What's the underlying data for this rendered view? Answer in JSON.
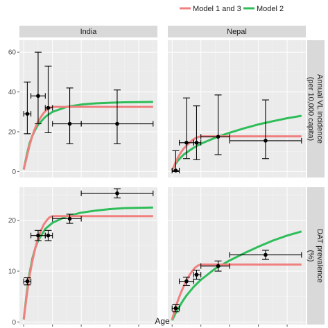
{
  "chart_data": {
    "type": "line",
    "xlabel": "Age",
    "xlim": [
      -3,
      93
    ],
    "xticks": [
      0,
      20,
      40,
      60,
      80
    ],
    "legend_position": "top",
    "grid": true,
    "columns": [
      "India",
      "Nepal"
    ],
    "rows": [
      {
        "label": "Annual VL incidence\n(per 10,000 capita)",
        "ylim": [
          -3,
          66
        ],
        "yticks": [
          0,
          20,
          40,
          60
        ]
      },
      {
        "label": "DAT prevalence\n(%)",
        "ylim": [
          -0.5,
          26.5
        ],
        "yticks": [
          0,
          10,
          20
        ]
      }
    ],
    "series": [
      {
        "name": "Model 1 and 3",
        "color": "#f08080"
      },
      {
        "name": "Model 2",
        "color": "#2ebd59"
      }
    ],
    "panels": [
      {
        "column": "India",
        "row": 0,
        "observed": [
          {
            "x": 2.5,
            "y": 29,
            "ylow": 19,
            "yhigh": 45,
            "xlow": 0,
            "xhigh": 5
          },
          {
            "x": 10,
            "y": 38,
            "ylow": 24,
            "yhigh": 60,
            "xlow": 5,
            "xhigh": 15
          },
          {
            "x": 17,
            "y": 32,
            "ylow": 19.5,
            "yhigh": 53,
            "xlow": 15,
            "xhigh": 20
          },
          {
            "x": 32,
            "y": 24,
            "ylow": 14,
            "yhigh": 42,
            "xlow": 20,
            "xhigh": 40
          },
          {
            "x": 65,
            "y": 24,
            "ylow": 14,
            "yhigh": 41,
            "xlow": 40,
            "xhigh": 90
          }
        ],
        "curves": {
          "Model 1 and 3": [
            [
              0,
              1
            ],
            [
              2,
              7
            ],
            [
              4,
              13
            ],
            [
              6,
              18
            ],
            [
              8,
              22
            ],
            [
              10,
              25
            ],
            [
              12,
              27.5
            ],
            [
              14,
              29.5
            ],
            [
              16,
              31
            ],
            [
              18,
              32
            ],
            [
              20,
              32.5
            ],
            [
              25,
              32.5
            ],
            [
              90,
              32.5
            ]
          ],
          "Model 2": [
            [
              0,
              1
            ],
            [
              2,
              8
            ],
            [
              4,
              14
            ],
            [
              6,
              18
            ],
            [
              8,
              21
            ],
            [
              10,
              23.5
            ],
            [
              15,
              27.5
            ],
            [
              20,
              30
            ],
            [
              30,
              32.5
            ],
            [
              40,
              33.7
            ],
            [
              50,
              34.3
            ],
            [
              60,
              34.6
            ],
            [
              70,
              34.8
            ],
            [
              90,
              35
            ]
          ]
        }
      },
      {
        "column": "Nepal",
        "row": 0,
        "observed": [
          {
            "x": 2.5,
            "y": 0.5,
            "ylow": 0,
            "yhigh": 10.5,
            "xlow": 0,
            "xhigh": 5
          },
          {
            "x": 10,
            "y": 14.5,
            "ylow": 6.5,
            "yhigh": 37,
            "xlow": 5,
            "xhigh": 15
          },
          {
            "x": 17,
            "y": 14.5,
            "ylow": 6,
            "yhigh": 33,
            "xlow": 15,
            "xhigh": 20
          },
          {
            "x": 32,
            "y": 17.5,
            "ylow": 8.5,
            "yhigh": 38.5,
            "xlow": 20,
            "xhigh": 40
          },
          {
            "x": 65,
            "y": 15.5,
            "ylow": 6.5,
            "yhigh": 36,
            "xlow": 40,
            "xhigh": 90
          }
        ],
        "curves": {
          "Model 1 and 3": [
            [
              0,
              0.5
            ],
            [
              2,
              4
            ],
            [
              4,
              7
            ],
            [
              6,
              9.5
            ],
            [
              8,
              11.5
            ],
            [
              10,
              13
            ],
            [
              12,
              14.5
            ],
            [
              14,
              15.7
            ],
            [
              16,
              16.7
            ],
            [
              18,
              17.3
            ],
            [
              20,
              17.7
            ],
            [
              90,
              17.7
            ]
          ],
          "Model 2": [
            [
              0,
              0.5
            ],
            [
              2,
              3.5
            ],
            [
              4,
              5.5
            ],
            [
              6,
              7
            ],
            [
              8,
              8.5
            ],
            [
              10,
              9.5
            ],
            [
              15,
              12
            ],
            [
              20,
              14
            ],
            [
              30,
              17
            ],
            [
              40,
              19.5
            ],
            [
              50,
              21.7
            ],
            [
              60,
              23.7
            ],
            [
              70,
              25.3
            ],
            [
              80,
              26.8
            ],
            [
              90,
              28
            ]
          ]
        }
      },
      {
        "column": "India",
        "row": 1,
        "observed": [
          {
            "x": 2.5,
            "y": 8,
            "ylow": 7.3,
            "yhigh": 8.7,
            "xlow": 0,
            "xhigh": 5
          },
          {
            "x": 10,
            "y": 17,
            "ylow": 16,
            "yhigh": 18,
            "xlow": 5,
            "xhigh": 15
          },
          {
            "x": 17,
            "y": 17,
            "ylow": 16,
            "yhigh": 18,
            "xlow": 15,
            "xhigh": 20
          },
          {
            "x": 32,
            "y": 20.3,
            "ylow": 19.4,
            "yhigh": 21.2,
            "xlow": 20,
            "xhigh": 40
          },
          {
            "x": 65,
            "y": 25.3,
            "ylow": 24.4,
            "yhigh": 26.2,
            "xlow": 40,
            "xhigh": 90
          }
        ],
        "curves": {
          "Model 1 and 3": [
            [
              0,
              0.5
            ],
            [
              2,
              5
            ],
            [
              4,
              9
            ],
            [
              6,
              12
            ],
            [
              8,
              14.5
            ],
            [
              10,
              16.5
            ],
            [
              12,
              18
            ],
            [
              14,
              19.2
            ],
            [
              16,
              20
            ],
            [
              18,
              20.6
            ],
            [
              20,
              20.8
            ],
            [
              90,
              20.8
            ]
          ],
          "Model 2": [
            [
              0,
              0.5
            ],
            [
              2,
              5.5
            ],
            [
              4,
              9.5
            ],
            [
              6,
              12.5
            ],
            [
              8,
              14.5
            ],
            [
              10,
              16
            ],
            [
              15,
              18.3
            ],
            [
              20,
              19.5
            ],
            [
              30,
              20.8
            ],
            [
              40,
              21.5
            ],
            [
              50,
              21.9
            ],
            [
              60,
              22.2
            ],
            [
              70,
              22.4
            ],
            [
              90,
              22.5
            ]
          ]
        }
      },
      {
        "column": "Nepal",
        "row": 1,
        "observed": [
          {
            "x": 2.5,
            "y": 2.7,
            "ylow": 2.0,
            "yhigh": 3.4,
            "xlow": 0,
            "xhigh": 5
          },
          {
            "x": 10,
            "y": 8,
            "ylow": 7.2,
            "yhigh": 8.8,
            "xlow": 5,
            "xhigh": 15
          },
          {
            "x": 17,
            "y": 9.3,
            "ylow": 8.4,
            "yhigh": 10.2,
            "xlow": 15,
            "xhigh": 20
          },
          {
            "x": 32,
            "y": 11,
            "ylow": 10,
            "yhigh": 12,
            "xlow": 20,
            "xhigh": 40
          },
          {
            "x": 65,
            "y": 13.2,
            "ylow": 12.3,
            "yhigh": 14.1,
            "xlow": 40,
            "xhigh": 90
          }
        ],
        "curves": {
          "Model 1 and 3": [
            [
              0,
              0.5
            ],
            [
              2,
              2.5
            ],
            [
              4,
              4.2
            ],
            [
              6,
              5.7
            ],
            [
              8,
              7
            ],
            [
              10,
              8.2
            ],
            [
              12,
              9.2
            ],
            [
              14,
              10
            ],
            [
              16,
              10.7
            ],
            [
              18,
              11.1
            ],
            [
              20,
              11.3
            ],
            [
              90,
              11.3
            ]
          ],
          "Model 2": [
            [
              0,
              0.3
            ],
            [
              2,
              1.5
            ],
            [
              4,
              2.5
            ],
            [
              6,
              3.5
            ],
            [
              8,
              4.4
            ],
            [
              10,
              5.2
            ],
            [
              15,
              6.9
            ],
            [
              20,
              8.3
            ],
            [
              30,
              10.5
            ],
            [
              40,
              12.1
            ],
            [
              50,
              13.5
            ],
            [
              60,
              14.8
            ],
            [
              70,
              16
            ],
            [
              80,
              17
            ],
            [
              90,
              17.8
            ]
          ]
        }
      }
    ]
  }
}
